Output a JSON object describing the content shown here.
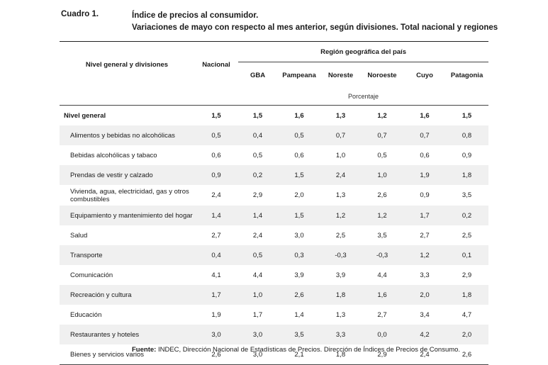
{
  "caption": "Cuadro 1.",
  "title_line1": "Índice de precios al consumidor.",
  "title_line2": "Variaciones de mayo con respecto al mes anterior, según divisiones. Total nacional y regiones",
  "table": {
    "col_division": "Nivel general y divisiones",
    "col_national": "Nacional",
    "region_header": "Región geográfica del país",
    "regions": [
      "GBA",
      "Pampeana",
      "Noreste",
      "Noroeste",
      "Cuyo",
      "Patagonia"
    ],
    "unit": "Porcentaje",
    "rows": [
      {
        "label": "Nivel general",
        "values": [
          "1,5",
          "1,5",
          "1,6",
          "1,3",
          "1,2",
          "1,6",
          "1,5"
        ]
      },
      {
        "label": "Alimentos y bebidas no alcohólicas",
        "values": [
          "0,5",
          "0,4",
          "0,5",
          "0,7",
          "0,7",
          "0,7",
          "0,8"
        ]
      },
      {
        "label": "Bebidas alcohólicas y tabaco",
        "values": [
          "0,6",
          "0,5",
          "0,6",
          "1,0",
          "0,5",
          "0,6",
          "0,9"
        ]
      },
      {
        "label": "Prendas de vestir y calzado",
        "values": [
          "0,9",
          "0,2",
          "1,5",
          "2,4",
          "1,0",
          "1,9",
          "1,8"
        ]
      },
      {
        "label": "Vivienda, agua, electricidad, gas y otros combustibles",
        "values": [
          "2,4",
          "2,9",
          "2,0",
          "1,3",
          "2,6",
          "0,9",
          "3,5"
        ]
      },
      {
        "label": "Equipamiento y mantenimiento del hogar",
        "values": [
          "1,4",
          "1,4",
          "1,5",
          "1,2",
          "1,2",
          "1,7",
          "0,2"
        ]
      },
      {
        "label": "Salud",
        "values": [
          "2,7",
          "2,4",
          "3,0",
          "2,5",
          "3,5",
          "2,7",
          "2,5"
        ]
      },
      {
        "label": "Transporte",
        "values": [
          "0,4",
          "0,5",
          "0,3",
          "-0,3",
          "-0,3",
          "1,2",
          "0,1"
        ]
      },
      {
        "label": "Comunicación",
        "values": [
          "4,1",
          "4,4",
          "3,9",
          "3,9",
          "4,4",
          "3,3",
          "2,9"
        ]
      },
      {
        "label": "Recreación y cultura",
        "values": [
          "1,7",
          "1,0",
          "2,6",
          "1,8",
          "1,6",
          "2,0",
          "1,8"
        ]
      },
      {
        "label": "Educación",
        "values": [
          "1,9",
          "1,7",
          "1,4",
          "1,3",
          "2,7",
          "3,4",
          "4,7"
        ]
      },
      {
        "label": "Restaurantes y hoteles",
        "values": [
          "3,0",
          "3,0",
          "3,5",
          "3,3",
          "0,0",
          "4,2",
          "2,0"
        ]
      },
      {
        "label": "Bienes y servicios varios",
        "values": [
          "2,6",
          "3,0",
          "2,1",
          "1,8",
          "2,9",
          "2,4",
          "2,6"
        ]
      }
    ]
  },
  "source_label": "Fuente:",
  "source_text": " INDEC, Dirección Nacional de Estadísticas de Precios. Dirección de Índices de Precios de Consumo."
}
